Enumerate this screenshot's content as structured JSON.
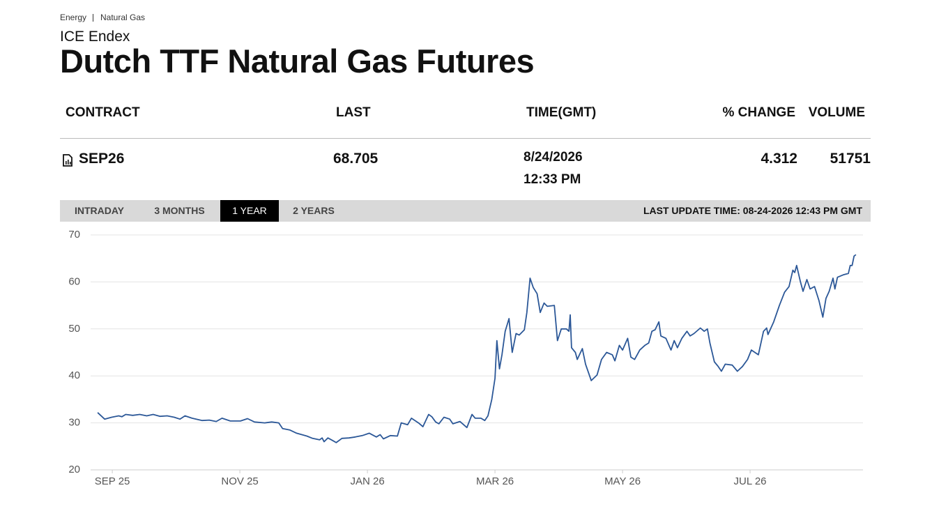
{
  "breadcrumb": [
    "Energy",
    "Natural Gas"
  ],
  "exchange": "ICE Endex",
  "title": "Dutch TTF Natural Gas Futures",
  "table": {
    "headers": [
      "CONTRACT",
      "LAST",
      "TIME(GMT)",
      "% CHANGE",
      "VOLUME"
    ],
    "row": {
      "contract": "SEP26",
      "last": 68.705,
      "date": "8/24/2026",
      "time": "12:33 PM",
      "change": 4.312,
      "volume": 51751
    }
  },
  "tabs": [
    "INTRADAY",
    "3 MONTHS",
    "1 YEAR",
    "2 YEARS"
  ],
  "active_tab": 2,
  "last_update": "LAST UPDATE TIME: 08-24-2026 12:43 PM GMT",
  "chart_data": {
    "type": "line",
    "color": "#2b5797",
    "grid": true,
    "xlim": [
      -0.34,
      11.77
    ],
    "ylim": [
      20,
      70
    ],
    "xticks": [
      {
        "value": 0,
        "label": "SEP 25"
      },
      {
        "value": 2,
        "label": "NOV 25"
      },
      {
        "value": 4,
        "label": "JAN 26"
      },
      {
        "value": 6,
        "label": "MAR 26"
      },
      {
        "value": 8,
        "label": "MAY 26"
      },
      {
        "value": 10,
        "label": "JUL 26"
      }
    ],
    "yticks": [
      20,
      30,
      40,
      50,
      60,
      70
    ],
    "x": [
      -0.23,
      -0.12,
      -0.01,
      0.1,
      0.15,
      0.21,
      0.32,
      0.43,
      0.54,
      0.64,
      0.75,
      0.86,
      0.97,
      1.06,
      1.14,
      1.25,
      1.41,
      1.52,
      1.63,
      1.72,
      1.85,
      2.01,
      2.12,
      2.23,
      2.39,
      2.5,
      2.61,
      2.67,
      2.78,
      2.89,
      3.05,
      3.14,
      3.25,
      3.29,
      3.32,
      3.38,
      3.46,
      3.51,
      3.6,
      3.71,
      3.81,
      3.92,
      4.03,
      4.14,
      4.2,
      4.25,
      4.36,
      4.47,
      4.53,
      4.63,
      4.69,
      4.8,
      4.87,
      4.96,
      5.01,
      5.07,
      5.12,
      5.2,
      5.29,
      5.34,
      5.45,
      5.56,
      5.64,
      5.69,
      5.78,
      5.84,
      5.89,
      5.95,
      6.0,
      6.03,
      6.07,
      6.11,
      6.16,
      6.22,
      6.27,
      6.33,
      6.38,
      6.46,
      6.5,
      6.55,
      6.6,
      6.66,
      6.71,
      6.77,
      6.82,
      6.93,
      6.98,
      7.04,
      7.12,
      7.16,
      7.18,
      7.2,
      7.26,
      7.29,
      7.37,
      7.42,
      7.51,
      7.6,
      7.67,
      7.75,
      7.84,
      7.88,
      7.95,
      8.0,
      8.08,
      8.13,
      8.19,
      8.27,
      8.35,
      8.41,
      8.46,
      8.51,
      8.57,
      8.6,
      8.68,
      8.76,
      8.81,
      8.86,
      8.93,
      9.01,
      9.06,
      9.12,
      9.22,
      9.28,
      9.33,
      9.37,
      9.44,
      9.5,
      9.55,
      9.61,
      9.72,
      9.8,
      9.88,
      9.96,
      10.02,
      10.13,
      10.21,
      10.26,
      10.28,
      10.37,
      10.46,
      10.54,
      10.61,
      10.67,
      10.7,
      10.73,
      10.79,
      10.83,
      10.89,
      10.94,
      11.01,
      11.08,
      11.14,
      11.19,
      11.24,
      11.3,
      11.33,
      11.37,
      11.46,
      11.54,
      11.57,
      11.6,
      11.63,
      11.66
    ],
    "values": [
      32.2,
      30.8,
      31.2,
      31.5,
      31.3,
      31.8,
      31.6,
      31.8,
      31.5,
      31.8,
      31.4,
      31.5,
      31.2,
      30.8,
      31.5,
      31.0,
      30.5,
      30.6,
      30.3,
      31.0,
      30.4,
      30.4,
      30.9,
      30.2,
      30.0,
      30.2,
      30.0,
      28.8,
      28.5,
      27.8,
      27.2,
      26.7,
      26.4,
      26.8,
      26.0,
      26.8,
      26.2,
      25.8,
      26.7,
      26.8,
      27.0,
      27.3,
      27.8,
      27.0,
      27.5,
      26.6,
      27.3,
      27.2,
      30.0,
      29.6,
      31.0,
      30.0,
      29.2,
      31.8,
      31.3,
      30.2,
      29.8,
      31.2,
      30.8,
      29.8,
      30.3,
      29.0,
      31.8,
      31.0,
      31.0,
      30.5,
      31.5,
      35.0,
      39.5,
      47.5,
      41.5,
      44.5,
      49.5,
      52.2,
      45.0,
      49.0,
      48.7,
      49.8,
      53.5,
      60.8,
      58.8,
      57.5,
      53.5,
      55.5,
      54.8,
      55.0,
      47.5,
      50.0,
      50.0,
      49.5,
      53.0,
      46.0,
      45.0,
      43.5,
      45.8,
      42.5,
      39.0,
      40.2,
      43.5,
      45.0,
      44.5,
      43.2,
      46.5,
      45.5,
      48.0,
      44.0,
      43.5,
      45.5,
      46.5,
      47.0,
      49.5,
      49.8,
      51.5,
      48.5,
      48.0,
      45.5,
      47.5,
      46.0,
      48.0,
      49.5,
      48.5,
      49.0,
      50.2,
      49.5,
      50.0,
      47.0,
      43.0,
      42.0,
      41.0,
      42.5,
      42.3,
      41.0,
      42.0,
      43.5,
      45.5,
      44.5,
      49.5,
      50.2,
      48.8,
      51.5,
      55.0,
      57.8,
      59.0,
      62.5,
      62.0,
      63.5,
      60.0,
      58.0,
      60.5,
      58.5,
      59.0,
      56.0,
      52.5,
      56.5,
      58.0,
      60.8,
      58.5,
      61.0,
      61.5,
      61.8,
      63.5,
      63.5,
      65.5,
      65.8
    ]
  }
}
